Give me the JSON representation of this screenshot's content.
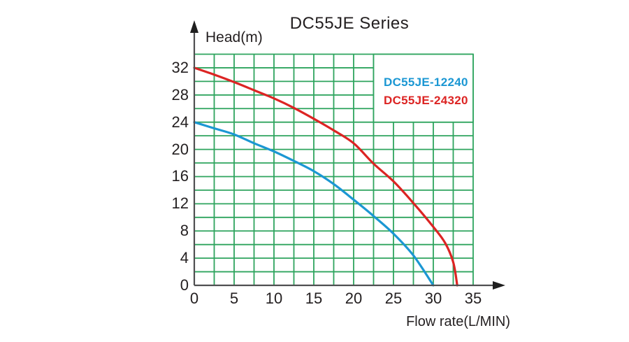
{
  "page": {
    "background": "#ffffff"
  },
  "chart_data": {
    "type": "line",
    "title": "DC55JE Series",
    "xlabel": "Flow rate(L/MIN)",
    "ylabel": "Head(m)",
    "xlim": [
      0,
      35
    ],
    "ylim": [
      0,
      34
    ],
    "x_ticks": [
      0,
      5,
      10,
      15,
      20,
      25,
      30,
      35
    ],
    "y_ticks": [
      0,
      4,
      8,
      12,
      16,
      20,
      24,
      28,
      32
    ],
    "x_minor_step": 2.5,
    "y_minor_step": 2,
    "grid_on": true,
    "grid_color": "#2ea45e",
    "axis_color": "#4f4f51",
    "arrow_color": "#1f1f1f",
    "text_color": "#231f20",
    "legend_position": "top-right",
    "legend_box": {
      "x_range": [
        22.5,
        35
      ],
      "y_range": [
        24,
        34
      ],
      "fill": "#ffffff"
    },
    "series": [
      {
        "name": "DC55JE-12240",
        "color": "#1b97d3",
        "points": [
          [
            0,
            24
          ],
          [
            2.5,
            23.1
          ],
          [
            5,
            22.2
          ],
          [
            7.5,
            20.9
          ],
          [
            10,
            19.7
          ],
          [
            12.5,
            18.3
          ],
          [
            15,
            16.8
          ],
          [
            17.5,
            14.9
          ],
          [
            20,
            12.6
          ],
          [
            22.5,
            10.2
          ],
          [
            25,
            7.6
          ],
          [
            27.5,
            4.4
          ],
          [
            30,
            0
          ]
        ]
      },
      {
        "name": "DC55JE-24320",
        "color": "#dc2423",
        "points": [
          [
            0,
            32
          ],
          [
            2.5,
            31
          ],
          [
            5,
            29.9
          ],
          [
            7.5,
            28.7
          ],
          [
            10,
            27.5
          ],
          [
            12.5,
            26.1
          ],
          [
            15,
            24.5
          ],
          [
            17.5,
            22.8
          ],
          [
            20,
            20.9
          ],
          [
            22.5,
            17.9
          ],
          [
            25,
            15.3
          ],
          [
            27.5,
            12.1
          ],
          [
            30,
            8.6
          ],
          [
            31.5,
            6.2
          ],
          [
            32.5,
            3.4
          ],
          [
            33,
            0
          ]
        ]
      }
    ]
  }
}
